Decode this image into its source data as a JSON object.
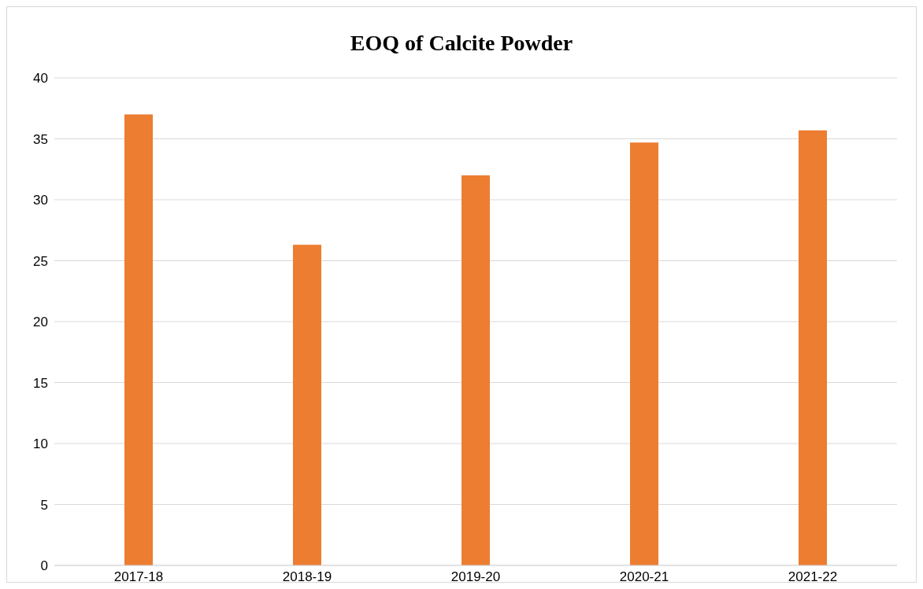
{
  "chart_data": {
    "type": "bar",
    "title": "EOQ of Calcite Powder",
    "categories": [
      "2017-18",
      "2018-19",
      "2019-20",
      "2020-21",
      "2021-22"
    ],
    "values": [
      37.0,
      26.3,
      32.0,
      34.7,
      35.7
    ],
    "color": "#ed7d31",
    "ylim": [
      0,
      40
    ],
    "yticks": [
      0,
      5,
      10,
      15,
      20,
      25,
      30,
      35,
      40
    ],
    "grid": "y"
  }
}
